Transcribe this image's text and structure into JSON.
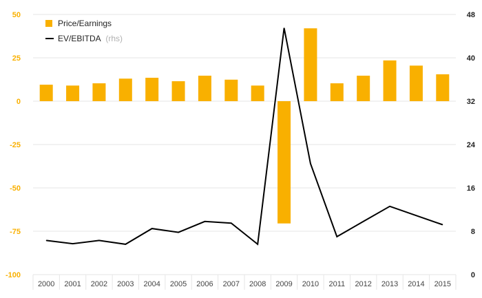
{
  "colors": {
    "bar": "#F9B000",
    "line": "#000000",
    "grid": "#e6e6e6",
    "left_axis_text": "#F9B000",
    "right_axis_text": "#222222",
    "muted": "#b0b0b0"
  },
  "legend": {
    "bar_label": "Price/Earnings",
    "line_label": "EV/EBITDA",
    "line_suffix": "(rhs)"
  },
  "chart_data": {
    "type": "bar",
    "categories": [
      "2000",
      "2001",
      "2002",
      "2003",
      "2004",
      "2005",
      "2006",
      "2007",
      "2008",
      "2009",
      "2010",
      "2011",
      "2012",
      "2013",
      "2014",
      "2015"
    ],
    "series": [
      {
        "name": "Price/Earnings",
        "type": "bar",
        "axis": "left",
        "values": [
          9.5,
          9,
          10.3,
          13,
          13.5,
          11.5,
          14.7,
          12.4,
          9,
          -70.5,
          42,
          10.3,
          14.7,
          23.5,
          20.5,
          15.5
        ]
      },
      {
        "name": "EV/EBITDA",
        "type": "line",
        "axis": "right",
        "values": [
          6.3,
          5.7,
          6.3,
          5.6,
          8.5,
          7.8,
          9.8,
          9.5,
          5.6,
          45.5,
          20.5,
          7,
          9.8,
          12.6,
          10.9,
          9.2
        ]
      }
    ],
    "y_left": {
      "min": -100,
      "max": 50,
      "ticks": [
        "50",
        "25",
        "0",
        "-25",
        "-50",
        "-75",
        "-100"
      ]
    },
    "y_right": {
      "min": 0,
      "max": 48,
      "ticks": [
        "48",
        "40",
        "32",
        "24",
        "16",
        "8",
        "0"
      ]
    },
    "legend_position": "top-left",
    "grid": true
  }
}
